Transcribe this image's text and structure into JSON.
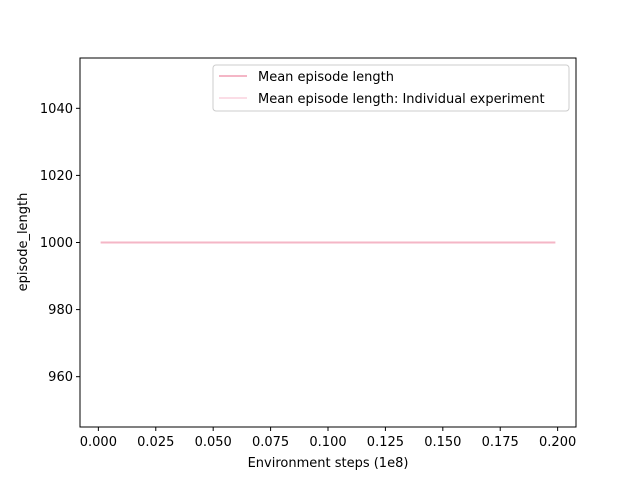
{
  "chart_data": {
    "type": "line",
    "xlabel": "Environment steps (1e8)",
    "ylabel": "episode_length",
    "xlim": [
      -0.008,
      0.208
    ],
    "ylim": [
      945,
      1055
    ],
    "x_ticks": [
      0.0,
      0.025,
      0.05,
      0.075,
      0.1,
      0.125,
      0.15,
      0.175,
      0.2
    ],
    "x_tick_labels": [
      "0.000",
      "0.025",
      "0.050",
      "0.075",
      "0.100",
      "0.125",
      "0.150",
      "0.175",
      "0.200"
    ],
    "y_ticks": [
      960,
      980,
      1000,
      1020,
      1040
    ],
    "y_tick_labels": [
      "960",
      "980",
      "1000",
      "1020",
      "1040"
    ],
    "grid": false,
    "legend_position": "top-right",
    "series": [
      {
        "name": "Mean episode length",
        "color": "#f4b6c6",
        "x": [
          0.001,
          0.199
        ],
        "y": [
          1000,
          1000
        ]
      },
      {
        "name": "Mean episode length: Individual experiment",
        "color": "#fbdde6",
        "x": [
          0.001,
          0.199
        ],
        "y": [
          1000,
          1000
        ]
      }
    ]
  }
}
